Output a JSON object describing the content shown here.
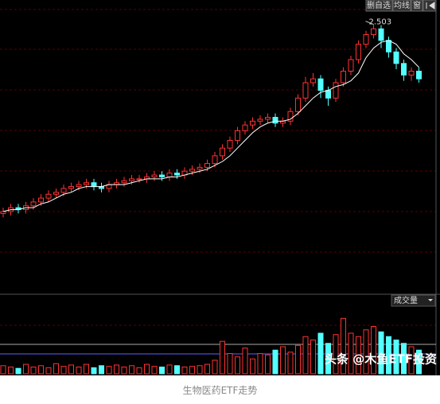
{
  "toolbar": {
    "buttons": [
      "删自选",
      "均线",
      "窗"
    ]
  },
  "chart_data": {
    "type": "candlestick",
    "open": [
      1.52,
      1.53,
      1.55,
      1.54,
      1.56,
      1.58,
      1.6,
      1.62,
      1.63,
      1.65,
      1.66,
      1.67,
      1.68,
      1.66,
      1.65,
      1.67,
      1.68,
      1.69,
      1.7,
      1.7,
      1.71,
      1.72,
      1.71,
      1.73,
      1.72,
      1.74,
      1.75,
      1.76,
      1.78,
      1.82,
      1.86,
      1.9,
      1.95,
      1.98,
      2.0,
      2.01,
      2.02,
      1.99,
      2.0,
      2.05,
      2.12,
      2.2,
      2.22,
      2.16,
      2.12,
      2.2,
      2.26,
      2.32,
      2.4,
      2.45,
      2.48,
      2.42,
      2.36,
      2.3,
      2.24,
      2.26
    ],
    "high": [
      1.55,
      1.57,
      1.57,
      1.58,
      1.6,
      1.62,
      1.64,
      1.65,
      1.67,
      1.68,
      1.69,
      1.7,
      1.7,
      1.68,
      1.69,
      1.7,
      1.71,
      1.72,
      1.72,
      1.73,
      1.74,
      1.74,
      1.75,
      1.75,
      1.76,
      1.77,
      1.78,
      1.8,
      1.84,
      1.88,
      1.92,
      1.97,
      2.0,
      2.02,
      2.03,
      2.04,
      2.04,
      2.02,
      2.07,
      2.14,
      2.23,
      2.25,
      2.24,
      2.18,
      2.22,
      2.28,
      2.34,
      2.42,
      2.47,
      2.503,
      2.5,
      2.44,
      2.38,
      2.32,
      2.28,
      2.28
    ],
    "low": [
      1.5,
      1.51,
      1.52,
      1.52,
      1.54,
      1.56,
      1.58,
      1.6,
      1.61,
      1.63,
      1.64,
      1.65,
      1.64,
      1.63,
      1.63,
      1.65,
      1.66,
      1.67,
      1.68,
      1.68,
      1.69,
      1.69,
      1.69,
      1.7,
      1.7,
      1.72,
      1.73,
      1.74,
      1.76,
      1.8,
      1.84,
      1.88,
      1.93,
      1.96,
      1.98,
      1.99,
      1.97,
      1.97,
      1.98,
      2.03,
      2.1,
      2.18,
      2.12,
      2.08,
      2.1,
      2.18,
      2.24,
      2.3,
      2.38,
      2.43,
      2.38,
      2.33,
      2.27,
      2.21,
      2.21,
      2.2
    ],
    "close": [
      1.53,
      1.55,
      1.54,
      1.56,
      1.58,
      1.6,
      1.62,
      1.63,
      1.65,
      1.66,
      1.67,
      1.68,
      1.66,
      1.65,
      1.67,
      1.68,
      1.69,
      1.7,
      1.7,
      1.71,
      1.72,
      1.71,
      1.73,
      1.72,
      1.74,
      1.75,
      1.76,
      1.78,
      1.82,
      1.86,
      1.9,
      1.95,
      1.98,
      2.0,
      2.01,
      2.02,
      1.99,
      2.0,
      2.05,
      2.12,
      2.2,
      2.22,
      2.16,
      2.12,
      2.2,
      2.26,
      2.32,
      2.4,
      2.45,
      2.48,
      2.42,
      2.36,
      2.3,
      2.24,
      2.26,
      2.22
    ],
    "ma": [
      1.53,
      1.54,
      1.54,
      1.55,
      1.55,
      1.57,
      1.58,
      1.6,
      1.62,
      1.63,
      1.65,
      1.66,
      1.66,
      1.66,
      1.67,
      1.67,
      1.67,
      1.68,
      1.69,
      1.7,
      1.7,
      1.7,
      1.71,
      1.71,
      1.72,
      1.73,
      1.74,
      1.75,
      1.77,
      1.79,
      1.82,
      1.86,
      1.9,
      1.94,
      1.97,
      1.99,
      2.0,
      2.0,
      2.01,
      2.04,
      2.08,
      2.12,
      2.15,
      2.16,
      2.18,
      2.19,
      2.21,
      2.25,
      2.33,
      2.38,
      2.41,
      2.42,
      2.4,
      2.35,
      2.32,
      2.28
    ],
    "up_color": "#ff3232",
    "down_color": "#54ffff",
    "ma_color": "#ffffff",
    "ylim": [
      1.1,
      2.63
    ],
    "volume": {
      "label": "成交量",
      "values": [
        12,
        10,
        8,
        14,
        10,
        12,
        9,
        15,
        11,
        13,
        10,
        14,
        9,
        12,
        11,
        13,
        10,
        12,
        9,
        14,
        11,
        10,
        13,
        12,
        10,
        11,
        12,
        14,
        20,
        48,
        30,
        25,
        38,
        22,
        30,
        28,
        35,
        40,
        32,
        42,
        55,
        50,
        60,
        45,
        58,
        82,
        60,
        55,
        65,
        70,
        62,
        55,
        50,
        45,
        40,
        35
      ],
      "ylim": [
        0,
        100
      ]
    }
  },
  "watermark": "头条 @木鱼ETF投资",
  "caption": "生物医药ETF走势"
}
